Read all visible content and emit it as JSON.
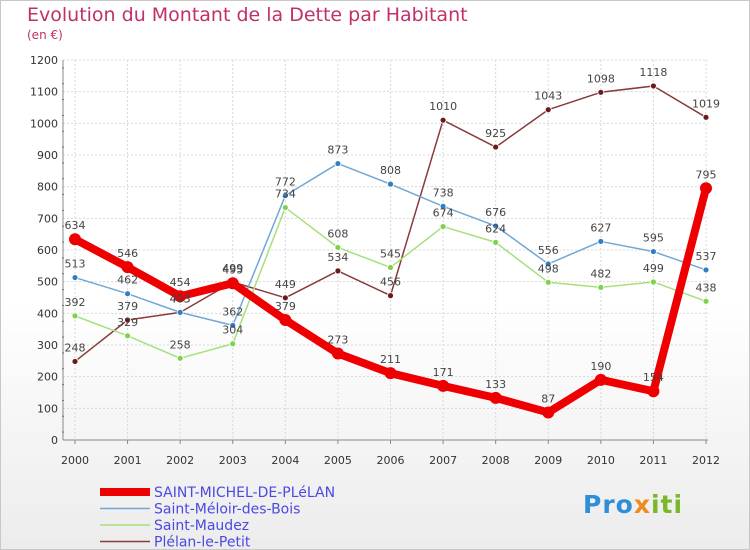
{
  "chart_data": {
    "type": "line",
    "title": "Evolution du Montant de la Dette par Habitant",
    "subtitle": "(en €)",
    "xlabel": "",
    "ylabel": "",
    "ylim": [
      0,
      1200
    ],
    "yticks": [
      0,
      100,
      200,
      300,
      400,
      500,
      600,
      700,
      800,
      900,
      1000,
      1100,
      1200
    ],
    "x": [
      "2000",
      "2001",
      "2002",
      "2003",
      "2004",
      "2005",
      "2006",
      "2007",
      "2008",
      "2009",
      "2010",
      "2011",
      "2012"
    ],
    "grid": true,
    "legend_position": "bottom-left",
    "series": [
      {
        "name": "SAINT-MICHEL-DE-PLéLAN",
        "color": "#ee0000",
        "values": [
          634,
          546,
          454,
          495,
          379,
          273,
          211,
          171,
          133,
          87,
          190,
          154,
          795
        ]
      },
      {
        "name": "Saint-Méloir-des-Bois",
        "color": "#6fa8d8",
        "marker": "#2f7fc2",
        "values": [
          513,
          462,
          403,
          362,
          772,
          873,
          808,
          738,
          676,
          556,
          627,
          595,
          537
        ]
      },
      {
        "name": "Saint-Maudez",
        "color": "#a6e07a",
        "marker": "#7fd24a",
        "values": [
          392,
          329,
          258,
          304,
          734,
          608,
          545,
          674,
          624,
          498,
          482,
          499,
          438
        ]
      },
      {
        "name": "Plélan-le-Petit",
        "color": "#8a3a3a",
        "marker": "#6a1a1a",
        "values": [
          248,
          379,
          403,
          499,
          449,
          534,
          456,
          1010,
          925,
          1043,
          1098,
          1118,
          1019
        ]
      }
    ]
  },
  "logo": {
    "p1": "Pro",
    "p2": "x",
    "p3": "iti"
  }
}
